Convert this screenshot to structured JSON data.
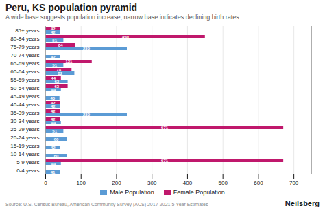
{
  "chart_data": {
    "type": "bar",
    "orientation": "horizontal",
    "title": "Peru, KS population pyramid",
    "subtitle": "A wide base suggests population increase, narrow base indicates declining birth rates.",
    "annotations": [
      "Source: U.S. Census Bureau, American Community Survey (ACS) 2017-2021 5-Year Estimates",
      "Neilsberg"
    ],
    "categories": [
      "85+ years",
      "80-84 years",
      "75-79 years",
      "70-74 years",
      "65-69 years",
      "60-64 years",
      "55-59 years",
      "50-54 years",
      "45-49 years",
      "40-44 years",
      "35-39 years",
      "30-34 years",
      "25-29 years",
      "20-24 years",
      "15-19 years",
      "10-14 years",
      "5-9 years",
      "0-4 years"
    ],
    "series": [
      {
        "name": "Male Population",
        "color": "#5b9bd5",
        "values": [
          42,
          51,
          230,
          42,
          51,
          82,
          63,
          44,
          40,
          42,
          230,
          44,
          51,
          60,
          42,
          60,
          44,
          41
        ]
      },
      {
        "name": "Female Population",
        "color": "#c0186c",
        "values": [
          42,
          450,
          84,
          0,
          131,
          74,
          44,
          63,
          0,
          42,
          42,
          42,
          671,
          0,
          0,
          0,
          671,
          0
        ]
      }
    ],
    "xlim": [
      0,
      750
    ],
    "xticks": [
      0,
      100,
      200,
      300,
      400,
      500,
      600,
      700
    ],
    "grid": true,
    "legend": "bottom",
    "data_labels": true
  }
}
